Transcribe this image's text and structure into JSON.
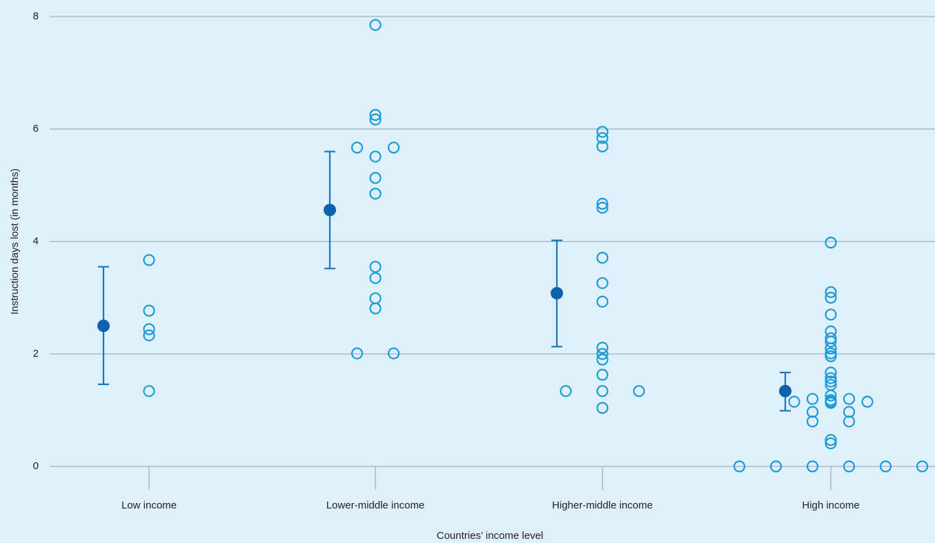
{
  "chart_data": {
    "type": "strip",
    "y_label": "Instruction days lost (in months)",
    "x_label": "Countries’ income level",
    "categories": [
      "Low income",
      "Lower-middle income",
      "Higher-middle income",
      "High income"
    ],
    "points": [
      [
        3.67,
        2.77,
        2.44,
        2.33,
        1.34
      ],
      [
        7.85,
        6.25,
        6.17,
        5.67,
        5.67,
        5.51,
        5.13,
        4.85,
        3.55,
        3.35,
        2.99,
        2.81,
        2.01,
        2.01
      ],
      [
        5.95,
        5.84,
        5.69,
        4.67,
        4.6,
        3.71,
        3.26,
        2.93,
        2.11,
        2.0,
        1.9,
        1.63,
        1.34,
        1.34,
        1.34,
        1.04
      ],
      [
        3.98,
        3.1,
        3.0,
        2.7,
        2.4,
        2.28,
        2.22,
        2.1,
        2.01,
        1.96,
        1.67,
        1.57,
        1.51,
        1.45,
        1.26,
        1.18,
        1.2,
        1.2,
        1.15,
        1.15,
        1.15,
        1.13,
        0.97,
        0.97,
        0.8,
        0.8,
        0.47,
        0.41,
        0,
        0,
        0,
        0,
        0,
        0
      ]
    ],
    "means": [
      2.5,
      4.56,
      3.08,
      1.34
    ],
    "ci": [
      [
        1.46,
        3.55
      ],
      [
        3.52,
        5.6
      ],
      [
        2.13,
        4.02
      ],
      [
        0.99,
        1.67
      ]
    ],
    "point_color": "#1a9ad6",
    "mean_color": "#0b63b0",
    "ci_color": "#1579c0",
    "ylim": [
      0,
      8
    ],
    "yticks": [
      0,
      2,
      4,
      6,
      8
    ],
    "grid": true
  }
}
